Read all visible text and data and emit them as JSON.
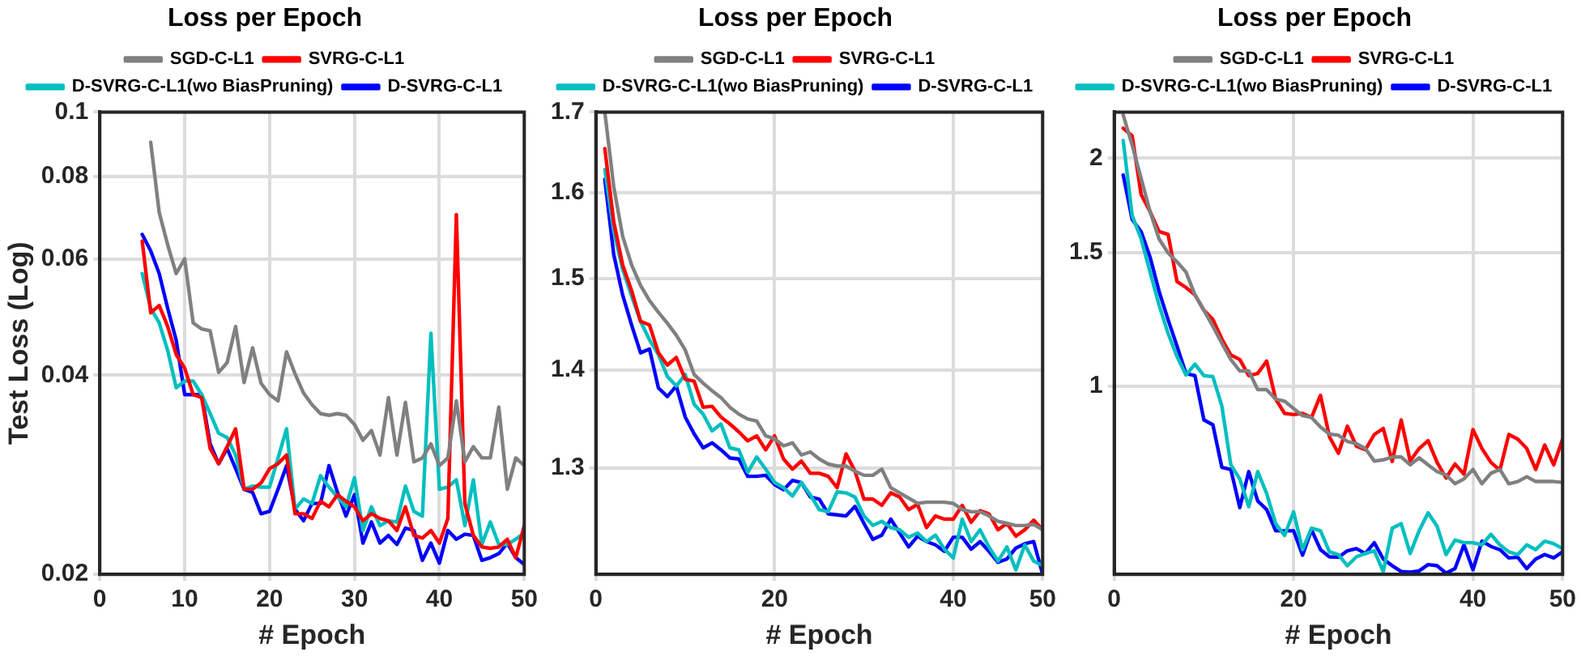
{
  "chart_data": [
    {
      "type": "line",
      "title": "Loss per Epoch",
      "xlabel": "# Epoch",
      "ylabel": "Test Loss (Log)",
      "x": [
        5,
        6,
        7,
        8,
        9,
        10,
        11,
        12,
        13,
        14,
        15,
        16,
        17,
        18,
        19,
        20,
        21,
        22,
        23,
        24,
        25,
        26,
        27,
        28,
        29,
        30,
        31,
        32,
        33,
        34,
        35,
        36,
        37,
        38,
        39,
        40,
        41,
        42,
        43,
        44,
        45,
        46,
        47,
        48,
        49,
        50
      ],
      "xlim": [
        0,
        50
      ],
      "xticks": [
        0,
        10,
        20,
        30,
        40,
        50
      ],
      "ylim": [
        0.02,
        0.1
      ],
      "yticks": [
        0.02,
        0.04,
        0.06,
        0.08,
        0.1
      ],
      "log": true,
      "grid": true,
      "legend": "top",
      "series": [
        {
          "name": "SGD-C-L1",
          "color": "#808080",
          "x": [
            6,
            7,
            8,
            9,
            10,
            11,
            12,
            13,
            14,
            15,
            16,
            17,
            18,
            19,
            20,
            21,
            22,
            23,
            24,
            25,
            26,
            27,
            28,
            29,
            30,
            31,
            32,
            33,
            34,
            35,
            36,
            37,
            38,
            39,
            40,
            41,
            42,
            43,
            44,
            45,
            46,
            47,
            48,
            49,
            50
          ],
          "values": [
            0.09,
            0.0705,
            0.063,
            0.057,
            0.06,
            0.048,
            0.047,
            0.0467,
            0.0404,
            0.0418,
            0.0474,
            0.039,
            0.044,
            0.0389,
            0.0374,
            0.0366,
            0.0434,
            0.0402,
            0.0376,
            0.0361,
            0.035,
            0.0348,
            0.035,
            0.0348,
            0.0337,
            0.0319,
            0.033,
            0.0303,
            0.037,
            0.0303,
            0.0364,
            0.0296,
            0.03,
            0.0315,
            0.0292,
            0.03,
            0.0366,
            0.0296,
            0.0312,
            0.03,
            0.03,
            0.0358,
            0.0269,
            0.03,
            0.0292
          ]
        },
        {
          "name": "SVRG-C-L1",
          "color": "#ff0000",
          "values": [
            0.0638,
            0.0497,
            0.051,
            0.0474,
            0.043,
            0.041,
            0.0374,
            0.037,
            0.031,
            0.0294,
            0.0312,
            0.0332,
            0.0269,
            0.0269,
            0.0275,
            0.0289,
            0.0294,
            0.0303,
            0.0247,
            0.0247,
            0.0243,
            0.0258,
            0.0253,
            0.0264,
            0.0258,
            0.0253,
            0.0241,
            0.0247,
            0.0243,
            0.0241,
            0.0233,
            0.0253,
            0.0229,
            0.0227,
            0.0233,
            0.0223,
            0.0243,
            0.07,
            0.0256,
            0.0229,
            0.022,
            0.0219,
            0.022,
            0.0226,
            0.0212,
            0.0237
          ]
        },
        {
          "name": "D-SVRG-C-L1(wo BiasPruning)",
          "color": "#00bfbf",
          "values": [
            0.057,
            0.0505,
            0.048,
            0.0436,
            0.0383,
            0.0392,
            0.0392,
            0.0374,
            0.035,
            0.0327,
            0.0322,
            0.0303,
            0.0269,
            0.0272,
            0.0271,
            0.0271,
            0.03,
            0.0332,
            0.0251,
            0.026,
            0.0256,
            0.0282,
            0.0271,
            0.0262,
            0.0253,
            0.028,
            0.0233,
            0.0253,
            0.0237,
            0.0241,
            0.024,
            0.0272,
            0.0249,
            0.0245,
            0.0463,
            0.0269,
            0.0271,
            0.0278,
            0.0237,
            0.0278,
            0.0222,
            0.024,
            0.0222,
            0.0222,
            0.0226,
            0.0231
          ]
        },
        {
          "name": "D-SVRG-C-L1",
          "color": "#0000ff",
          "values": [
            0.0653,
            0.0617,
            0.057,
            0.0505,
            0.0452,
            0.0374,
            0.0374,
            0.0374,
            0.0315,
            0.0294,
            0.031,
            0.0289,
            0.0269,
            0.0266,
            0.0247,
            0.0249,
            0.0269,
            0.0292,
            0.0251,
            0.0241,
            0.0256,
            0.0256,
            0.0292,
            0.0266,
            0.0245,
            0.0264,
            0.0223,
            0.024,
            0.0223,
            0.0229,
            0.0222,
            0.0235,
            0.0233,
            0.021,
            0.0223,
            0.0208,
            0.0233,
            0.0226,
            0.023,
            0.0229,
            0.021,
            0.0212,
            0.0215,
            0.0223,
            0.0212,
            0.0207
          ]
        }
      ]
    },
    {
      "type": "line",
      "title": "Loss per Epoch",
      "xlabel": "# Epoch",
      "x": [
        1,
        2,
        3,
        4,
        5,
        6,
        7,
        8,
        9,
        10,
        11,
        12,
        13,
        14,
        15,
        16,
        17,
        18,
        19,
        20,
        21,
        22,
        23,
        24,
        25,
        26,
        27,
        28,
        29,
        30,
        31,
        32,
        33,
        34,
        35,
        36,
        37,
        38,
        39,
        40,
        41,
        42,
        43,
        44,
        45,
        46,
        47,
        48,
        49,
        50
      ],
      "xlim": [
        0,
        50
      ],
      "xticks": [
        0,
        20,
        40,
        50
      ],
      "ylim": [
        1.2,
        1.7
      ],
      "yticks": [
        1.3,
        1.4,
        1.5,
        1.6,
        1.7
      ],
      "log": true,
      "grid": true,
      "legend": "top",
      "series": [
        {
          "name": "SGD-C-L1",
          "color": "#808080",
          "values": [
            1.7,
            1.607,
            1.548,
            1.515,
            1.492,
            1.475,
            1.462,
            1.45,
            1.437,
            1.421,
            1.395,
            1.386,
            1.378,
            1.371,
            1.361,
            1.354,
            1.349,
            1.347,
            1.332,
            1.329,
            1.322,
            1.325,
            1.313,
            1.316,
            1.309,
            1.304,
            1.302,
            1.302,
            1.297,
            1.293,
            1.293,
            1.299,
            1.281,
            1.276,
            1.271,
            1.266,
            1.267,
            1.267,
            1.267,
            1.266,
            1.26,
            1.258,
            1.258,
            1.254,
            1.249,
            1.247,
            1.245,
            1.245,
            1.246,
            1.241
          ]
        },
        {
          "name": "SVRG-C-L1",
          "color": "#ff0000",
          "values": [
            1.654,
            1.565,
            1.515,
            1.486,
            1.452,
            1.448,
            1.418,
            1.405,
            1.413,
            1.39,
            1.388,
            1.361,
            1.362,
            1.351,
            1.344,
            1.336,
            1.327,
            1.332,
            1.318,
            1.332,
            1.309,
            1.299,
            1.307,
            1.295,
            1.295,
            1.292,
            1.281,
            1.314,
            1.297,
            1.27,
            1.27,
            1.264,
            1.276,
            1.272,
            1.26,
            1.265,
            1.243,
            1.254,
            1.251,
            1.251,
            1.264,
            1.248,
            1.259,
            1.256,
            1.241,
            1.247,
            1.235,
            1.241,
            1.25,
            1.241
          ]
        },
        {
          "name": "D-SVRG-C-L1(wo BiasPruning)",
          "color": "#00bfbf",
          "values": [
            1.628,
            1.554,
            1.51,
            1.48,
            1.452,
            1.432,
            1.416,
            1.393,
            1.383,
            1.395,
            1.364,
            1.354,
            1.337,
            1.344,
            1.32,
            1.318,
            1.296,
            1.311,
            1.299,
            1.286,
            1.281,
            1.273,
            1.286,
            1.274,
            1.26,
            1.258,
            1.277,
            1.276,
            1.272,
            1.254,
            1.245,
            1.249,
            1.243,
            1.241,
            1.234,
            1.238,
            1.23,
            1.236,
            1.223,
            1.215,
            1.251,
            1.23,
            1.241,
            1.225,
            1.212,
            1.225,
            1.204,
            1.227,
            1.212,
            1.208
          ]
        },
        {
          "name": "D-SVRG-C-L1",
          "color": "#0000ff",
          "values": [
            1.616,
            1.527,
            1.481,
            1.448,
            1.418,
            1.422,
            1.381,
            1.372,
            1.383,
            1.351,
            1.334,
            1.32,
            1.325,
            1.318,
            1.31,
            1.309,
            1.292,
            1.292,
            1.293,
            1.284,
            1.279,
            1.288,
            1.286,
            1.272,
            1.27,
            1.256,
            1.255,
            1.254,
            1.263,
            1.247,
            1.232,
            1.236,
            1.251,
            1.238,
            1.225,
            1.235,
            1.23,
            1.227,
            1.221,
            1.234,
            1.234,
            1.223,
            1.23,
            1.221,
            1.211,
            1.214,
            1.224,
            1.228,
            1.23,
            1.2
          ]
        }
      ]
    },
    {
      "type": "line",
      "title": "Loss per Epoch",
      "xlabel": "# Epoch",
      "x": [
        1,
        2,
        3,
        4,
        5,
        6,
        7,
        8,
        9,
        10,
        11,
        12,
        13,
        14,
        15,
        16,
        17,
        18,
        19,
        20,
        21,
        22,
        23,
        24,
        25,
        26,
        27,
        28,
        29,
        30,
        31,
        32,
        33,
        34,
        35,
        36,
        37,
        38,
        39,
        40,
        41,
        42,
        43,
        44,
        45,
        46,
        47,
        48,
        49,
        50
      ],
      "xlim": [
        0,
        50
      ],
      "xticks": [
        0,
        20,
        40,
        50
      ],
      "ylim": [
        0.565,
        2.3
      ],
      "yticks": [
        1,
        1.5,
        2
      ],
      "log": true,
      "grid": true,
      "legend": "top",
      "series": [
        {
          "name": "SGD-C-L1",
          "color": "#808080",
          "values": [
            2.28,
            2.08,
            1.88,
            1.7,
            1.565,
            1.5,
            1.46,
            1.415,
            1.32,
            1.26,
            1.2,
            1.14,
            1.085,
            1.048,
            1.048,
            0.99,
            0.99,
            0.962,
            0.956,
            0.935,
            0.915,
            0.91,
            0.884,
            0.865,
            0.862,
            0.846,
            0.84,
            0.828,
            0.797,
            0.8,
            0.807,
            0.807,
            0.788,
            0.805,
            0.788,
            0.772,
            0.764,
            0.744,
            0.755,
            0.777,
            0.744,
            0.768,
            0.777,
            0.744,
            0.749,
            0.76,
            0.749,
            0.749,
            0.749,
            0.747
          ]
        },
        {
          "name": "SVRG-C-L1",
          "color": "#ff0000",
          "values": [
            2.19,
            2.14,
            1.79,
            1.7,
            1.6,
            1.587,
            1.375,
            1.35,
            1.32,
            1.26,
            1.225,
            1.155,
            1.1,
            1.085,
            1.033,
            1.04,
            1.08,
            0.962,
            0.921,
            0.918,
            0.921,
            0.91,
            0.973,
            0.858,
            0.816,
            0.886,
            0.834,
            0.825,
            0.864,
            0.88,
            0.796,
            0.903,
            0.797,
            0.828,
            0.848,
            0.794,
            0.757,
            0.79,
            0.766,
            0.877,
            0.828,
            0.794,
            0.775,
            0.864,
            0.852,
            0.828,
            0.777,
            0.837,
            0.788,
            0.852
          ]
        },
        {
          "name": "D-SVRG-C-L1(wo BiasPruning)",
          "color": "#00bfbf",
          "values": [
            2.11,
            1.68,
            1.565,
            1.415,
            1.28,
            1.175,
            1.095,
            1.035,
            1.07,
            1.033,
            1.03,
            0.942,
            0.788,
            0.755,
            0.694,
            0.772,
            0.722,
            0.659,
            0.636,
            0.683,
            0.609,
            0.65,
            0.645,
            0.605,
            0.6,
            0.58,
            0.596,
            0.602,
            0.607,
            0.57,
            0.65,
            0.659,
            0.602,
            0.645,
            0.681,
            0.654,
            0.6,
            0.627,
            0.622,
            0.622,
            0.618,
            0.638,
            0.618,
            0.605,
            0.6,
            0.618,
            0.609,
            0.625,
            0.62,
            0.611
          ]
        },
        {
          "name": "D-SVRG-C-L1",
          "color": "#0000ff",
          "values": [
            1.9,
            1.66,
            1.6,
            1.48,
            1.335,
            1.225,
            1.13,
            1.04,
            1.033,
            0.903,
            0.89,
            0.782,
            0.777,
            0.692,
            0.772,
            0.706,
            0.688,
            0.645,
            0.645,
            0.645,
            0.599,
            0.647,
            0.609,
            0.596,
            0.595,
            0.607,
            0.611,
            0.602,
            0.622,
            0.592,
            0.58,
            0.57,
            0.569,
            0.571,
            0.582,
            0.58,
            0.567,
            0.575,
            0.618,
            0.573,
            0.625,
            0.615,
            0.609,
            0.594,
            0.595,
            0.575,
            0.592,
            0.6,
            0.594,
            0.605
          ]
        }
      ]
    }
  ]
}
